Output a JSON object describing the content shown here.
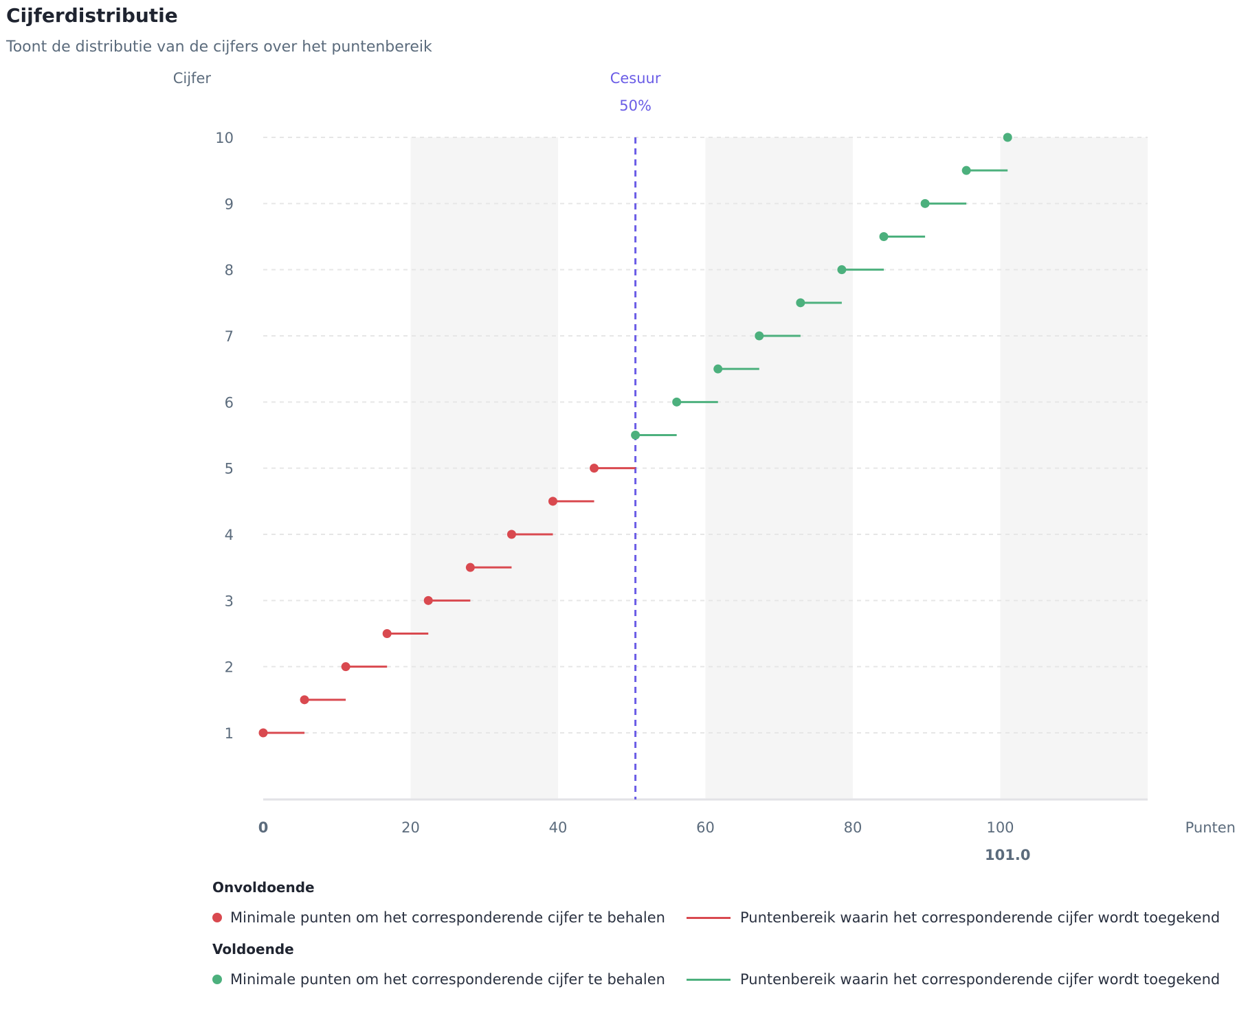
{
  "header": {
    "title": "Cijferdistributie",
    "subtitle": "Toont de distributie van de cijfers over het puntenbereik"
  },
  "chart_data": {
    "type": "scatter",
    "ylabel": "Cijfer",
    "xlabel": "Punten",
    "xlim": [
      0,
      120
    ],
    "ylim": [
      0,
      10
    ],
    "x_ticks": [
      0,
      20,
      40,
      60,
      80,
      100
    ],
    "y_ticks": [
      1,
      2,
      3,
      4,
      5,
      6,
      7,
      8,
      9,
      10
    ],
    "max_points_label": "101.0",
    "max_points": 101,
    "cesuur": {
      "label": "Cesuur",
      "value_label": "50%",
      "x": 50.5
    },
    "grid": "horizontal dashed, alternating vertical bands",
    "series": [
      {
        "name": "Onvoldoende",
        "color": "#d9494f",
        "points": [
          {
            "grade": 1.0,
            "min": 0.0,
            "max": 5.6
          },
          {
            "grade": 1.5,
            "min": 5.6,
            "max": 11.2
          },
          {
            "grade": 2.0,
            "min": 11.2,
            "max": 16.8
          },
          {
            "grade": 2.5,
            "min": 16.8,
            "max": 22.4
          },
          {
            "grade": 3.0,
            "min": 22.4,
            "max": 28.1
          },
          {
            "grade": 3.5,
            "min": 28.1,
            "max": 33.7
          },
          {
            "grade": 4.0,
            "min": 33.7,
            "max": 39.3
          },
          {
            "grade": 4.5,
            "min": 39.3,
            "max": 44.9
          },
          {
            "grade": 5.0,
            "min": 44.9,
            "max": 50.5
          }
        ]
      },
      {
        "name": "Voldoende",
        "color": "#4cb07d",
        "points": [
          {
            "grade": 5.5,
            "min": 50.5,
            "max": 56.1
          },
          {
            "grade": 6.0,
            "min": 56.1,
            "max": 61.7
          },
          {
            "grade": 6.5,
            "min": 61.7,
            "max": 67.3
          },
          {
            "grade": 7.0,
            "min": 67.3,
            "max": 72.9
          },
          {
            "grade": 7.5,
            "min": 72.9,
            "max": 78.5
          },
          {
            "grade": 8.0,
            "min": 78.5,
            "max": 84.2
          },
          {
            "grade": 8.5,
            "min": 84.2,
            "max": 89.8
          },
          {
            "grade": 9.0,
            "min": 89.8,
            "max": 95.4
          },
          {
            "grade": 9.5,
            "min": 95.4,
            "max": 101.0
          },
          {
            "grade": 10.0,
            "min": 101.0,
            "max": 101.0
          }
        ]
      }
    ]
  },
  "legend": {
    "groups": [
      {
        "title": "Onvoldoende",
        "color": "#d9494f",
        "dot_label": "Minimale punten om het corresponderende cijfer te behalen",
        "line_label": "Puntenbereik waarin het corresponderende cijfer wordt toegekend"
      },
      {
        "title": "Voldoende",
        "color": "#4cb07d",
        "dot_label": "Minimale punten om het corresponderende cijfer te behalen",
        "line_label": "Puntenbereik waarin het corresponderende cijfer wordt toegekend"
      }
    ]
  },
  "colors": {
    "cesuur": "#6a5ce6",
    "axis_text": "#5b6b7c",
    "band": "#f5f5f5",
    "grid": "#e6e6e6"
  }
}
